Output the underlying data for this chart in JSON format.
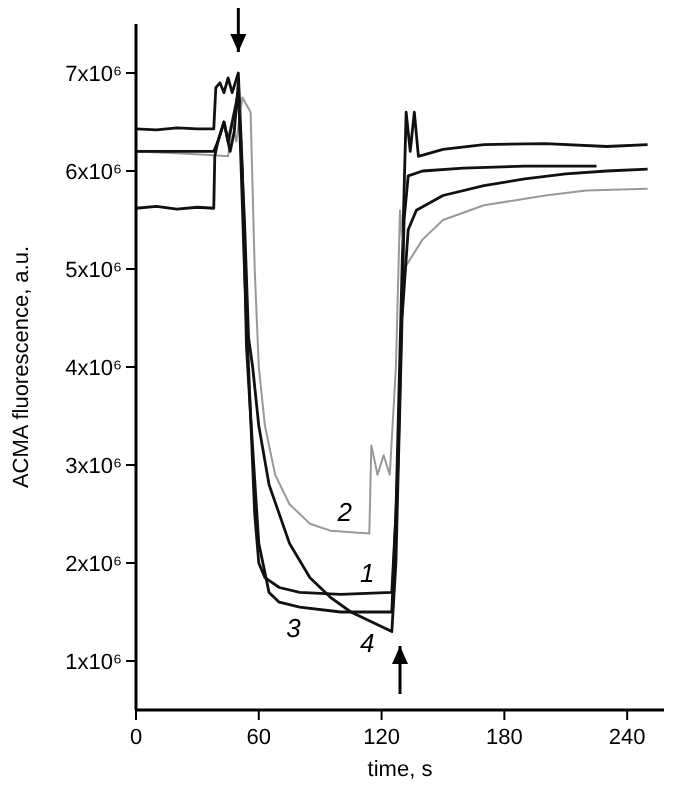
{
  "chart_data": {
    "type": "line",
    "xlabel": "time, s",
    "ylabel": "ACMA fluorescence, a.u.",
    "xlim": [
      0,
      258
    ],
    "xticks": [
      0,
      60,
      120,
      180,
      240
    ],
    "ylim": [
      500000.0,
      7500000.0
    ],
    "yticks": [
      {
        "value": 1000000.0,
        "label": "1x10⁶"
      },
      {
        "value": 2000000.0,
        "label": "2x10⁶"
      },
      {
        "value": 3000000.0,
        "label": "3x10⁶"
      },
      {
        "value": 4000000.0,
        "label": "4x10⁶"
      },
      {
        "value": 5000000.0,
        "label": "5x10⁶"
      },
      {
        "value": 6000000.0,
        "label": "6x10⁶"
      },
      {
        "value": 7000000.0,
        "label": "7x10⁶"
      }
    ],
    "grid": false,
    "marker": "none",
    "line_style": "solid",
    "series": [
      {
        "name": "1",
        "color": "#111111",
        "x": [
          0,
          10,
          20,
          30,
          38,
          39,
          41,
          43,
          45,
          47,
          50,
          52,
          54,
          56,
          58,
          60,
          63,
          70,
          80,
          100,
          125,
          127,
          130,
          132,
          134,
          136,
          138,
          150,
          170,
          200,
          230,
          250
        ],
        "values": [
          6430000.0,
          6420000.0,
          6440000.0,
          6430000.0,
          6430000.0,
          6850000.0,
          6900000.0,
          6800000.0,
          6950000.0,
          6800000.0,
          7000000.0,
          6000000.0,
          4200000.0,
          3500000.0,
          2500000.0,
          2000000.0,
          1850000.0,
          1750000.0,
          1700000.0,
          1680000.0,
          1700000.0,
          2500000.0,
          5000000.0,
          6600000.0,
          6200000.0,
          6600000.0,
          6150000.0,
          6220000.0,
          6270000.0,
          6280000.0,
          6250000.0,
          6270000.0
        ]
      },
      {
        "name": "2",
        "color": "#999999",
        "x": [
          0,
          20,
          38,
          45,
          47,
          49,
          52,
          56,
          58,
          60,
          63,
          68,
          75,
          85,
          95,
          114,
          115,
          118,
          121,
          124,
          127,
          129,
          131,
          140,
          150,
          170,
          200,
          220,
          250
        ],
        "values": [
          6200000.0,
          6180000.0,
          6160000.0,
          6150000.0,
          6500000.0,
          6300000.0,
          6750000.0,
          6600000.0,
          5000000.0,
          4000000.0,
          3400000.0,
          2900000.0,
          2600000.0,
          2400000.0,
          2330000.0,
          2300000.0,
          3200000.0,
          2900000.0,
          3100000.0,
          2900000.0,
          4000000.0,
          5600000.0,
          5000000.0,
          5300000.0,
          5500000.0,
          5650000.0,
          5750000.0,
          5800000.0,
          5820000.0
        ]
      },
      {
        "name": "3",
        "color": "#111111",
        "x": [
          0,
          20,
          38,
          40,
          43,
          46,
          48,
          50,
          53,
          56,
          60,
          65,
          70,
          80,
          100,
          125,
          128,
          131,
          133,
          140,
          160,
          190,
          225
        ],
        "values": [
          6200000.0,
          6200000.0,
          6200000.0,
          6300000.0,
          6500000.0,
          6200000.0,
          6400000.0,
          6900000.0,
          5000000.0,
          3500000.0,
          2200000.0,
          1700000.0,
          1600000.0,
          1550000.0,
          1500000.0,
          1500000.0,
          3000000.0,
          5500000.0,
          5950000.0,
          6000000.0,
          6030000.0,
          6050000.0,
          6050000.0
        ]
      },
      {
        "name": "4",
        "color": "#111111",
        "x": [
          0,
          10,
          20,
          30,
          38,
          38.5,
          40,
          43,
          45,
          47,
          50,
          53,
          55,
          57,
          60,
          65,
          75,
          85,
          95,
          105,
          115,
          125,
          127,
          130,
          133,
          137,
          150,
          170,
          190,
          210,
          230,
          250
        ],
        "values": [
          5620000.0,
          5640000.0,
          5610000.0,
          5630000.0,
          5620000.0,
          6150000.0,
          6300000.0,
          6500000.0,
          6300000.0,
          6500000.0,
          6800000.0,
          5500000.0,
          4300000.0,
          4000000.0,
          3400000.0,
          2800000.0,
          2200000.0,
          1850000.0,
          1650000.0,
          1500000.0,
          1400000.0,
          1300000.0,
          2000000.0,
          4500000.0,
          5400000.0,
          5600000.0,
          5750000.0,
          5850000.0,
          5920000.0,
          5970000.0,
          6000000.0,
          6020000.0
        ]
      }
    ]
  }
}
